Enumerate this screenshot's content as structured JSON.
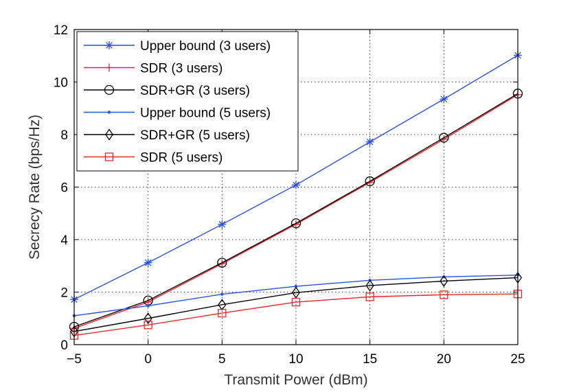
{
  "chart_data": {
    "type": "line",
    "title": "",
    "xlabel": "Transmit Power (dBm)",
    "ylabel": "Secrecy Rate (bps/Hz)",
    "x": [
      -5,
      0,
      5,
      10,
      15,
      20,
      25
    ],
    "xlim": [
      -5,
      25
    ],
    "ylim": [
      0,
      12
    ],
    "xticks": [
      -5,
      0,
      5,
      10,
      15,
      20,
      25
    ],
    "xtick_labels": [
      "−5",
      "0",
      "5",
      "10",
      "15",
      "20",
      "25"
    ],
    "yticks": [
      0,
      2,
      4,
      6,
      8,
      10,
      12
    ],
    "ytick_labels": [
      "0",
      "2",
      "4",
      "6",
      "8",
      "10",
      "12"
    ],
    "grid": true,
    "legend_position": "top-left",
    "series": [
      {
        "name": "Upper bound (3 users)",
        "color": "#2b4fe6",
        "marker": "asterisk",
        "values": [
          1.72,
          3.12,
          4.58,
          6.08,
          7.72,
          9.35,
          11.02
        ]
      },
      {
        "name": "SDR (3 users)",
        "color": "#e8262b",
        "marker": "plus",
        "values": [
          0.62,
          1.62,
          3.08,
          4.58,
          6.18,
          7.82,
          9.52
        ]
      },
      {
        "name": "SDR+GR (3 users)",
        "color": "#000000",
        "marker": "circle",
        "values": [
          0.68,
          1.68,
          3.12,
          4.62,
          6.22,
          7.88,
          9.56
        ]
      },
      {
        "name": "Upper bound (5 users)",
        "color": "#2b4fe6",
        "marker": "dot",
        "values": [
          1.1,
          1.48,
          1.92,
          2.22,
          2.45,
          2.58,
          2.65
        ]
      },
      {
        "name": "SDR+GR (5 users)",
        "color": "#000000",
        "marker": "diamond",
        "values": [
          0.5,
          1.0,
          1.52,
          1.98,
          2.25,
          2.42,
          2.55
        ]
      },
      {
        "name": "SDR (5 users)",
        "color": "#e8262b",
        "marker": "square",
        "values": [
          0.35,
          0.75,
          1.2,
          1.62,
          1.82,
          1.9,
          1.93
        ]
      }
    ]
  }
}
